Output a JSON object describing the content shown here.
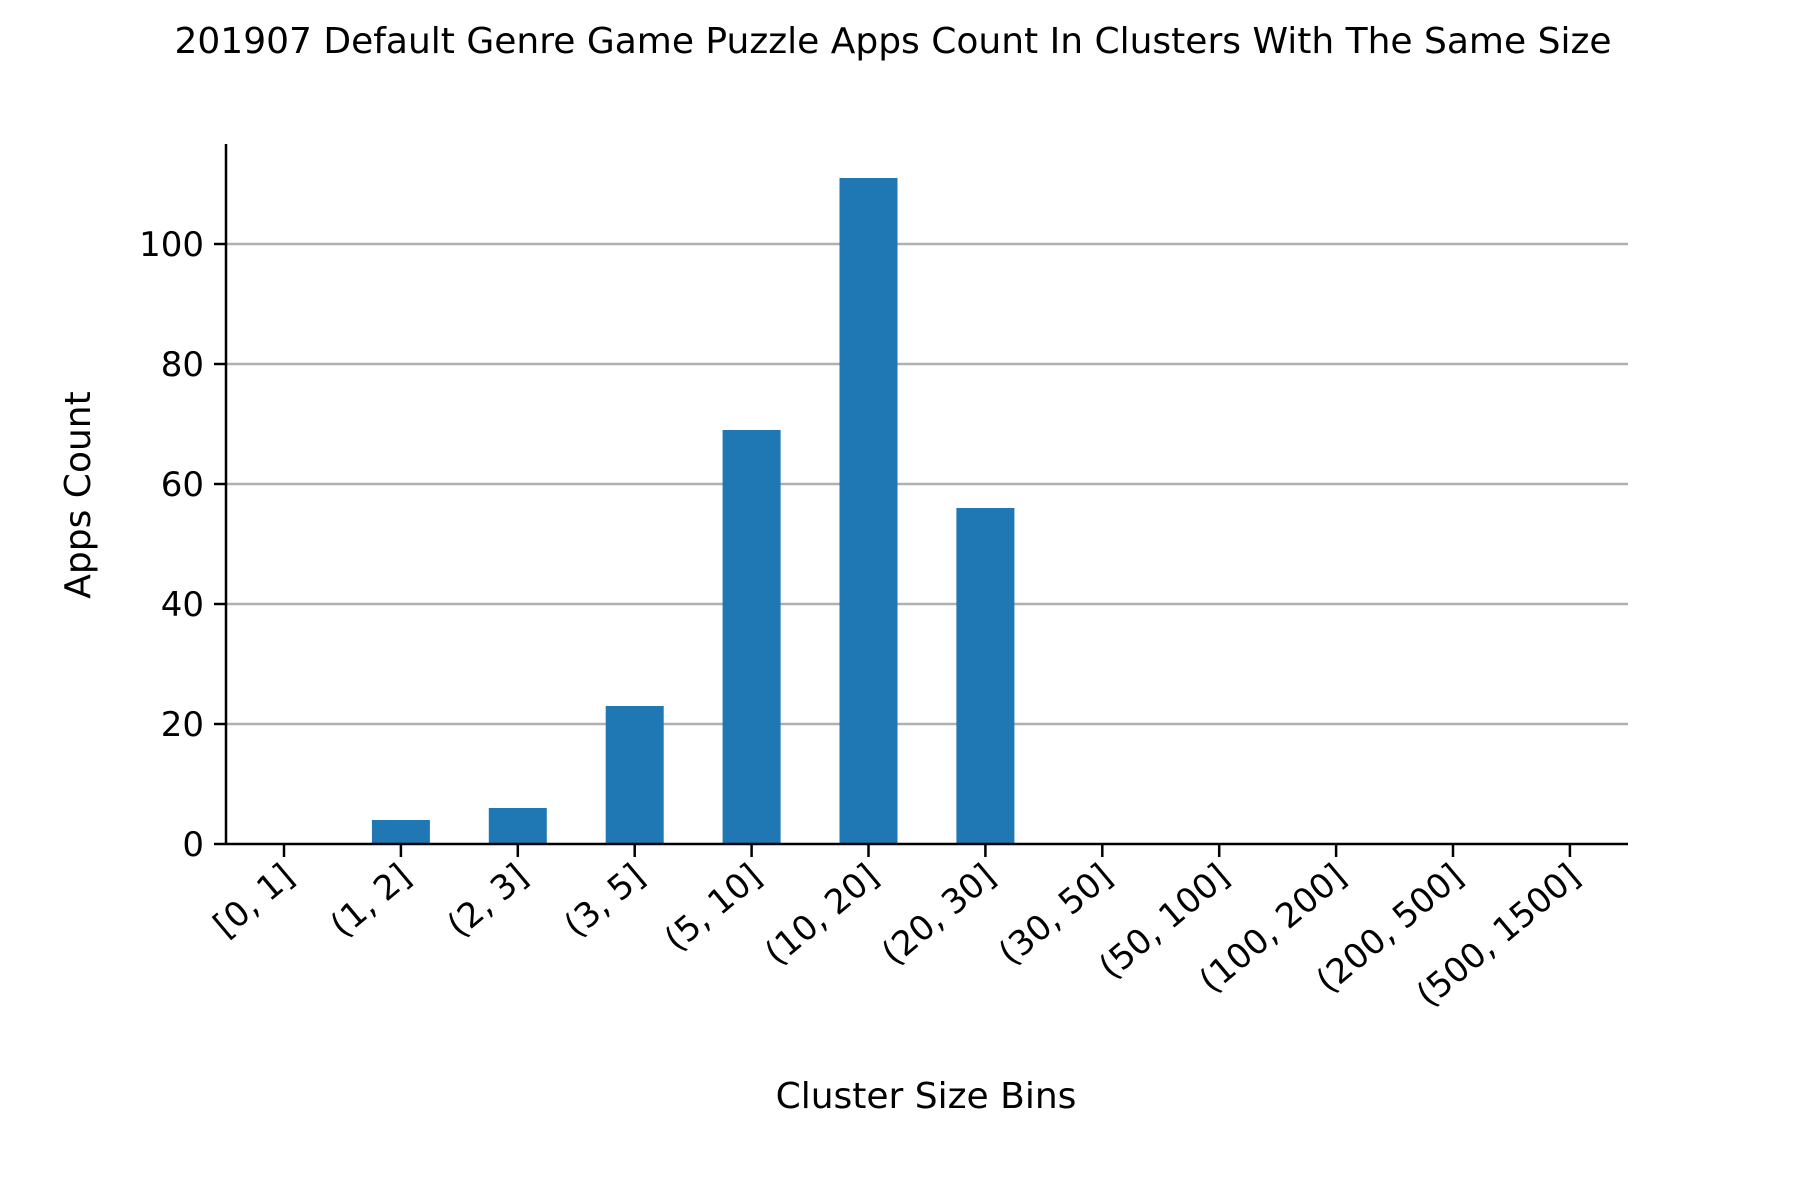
{
  "chart_data": {
    "type": "bar",
    "title": "201907 Default Genre Game Puzzle Apps Count In Clusters With The Same Size",
    "xlabel": "Cluster Size Bins",
    "ylabel": "Apps Count",
    "categories": [
      "[0, 1]",
      "(1, 2]",
      "(2, 3]",
      "(3, 5]",
      "(5, 10]",
      "(10, 20]",
      "(20, 30]",
      "(30, 50]",
      "(50, 100]",
      "(100, 200]",
      "(200, 500]",
      "(500, 1500]"
    ],
    "values": [
      0,
      4,
      6,
      23,
      69,
      111,
      56,
      0,
      0,
      0,
      0,
      0
    ],
    "ylim": [
      0,
      116.55
    ],
    "yticks": [
      0,
      20,
      40,
      60,
      80,
      100
    ],
    "grid": "y",
    "legend": "none",
    "colors": {
      "bar": "#1f77b4",
      "grid": "#b0b0b0",
      "axis": "#000000"
    }
  }
}
